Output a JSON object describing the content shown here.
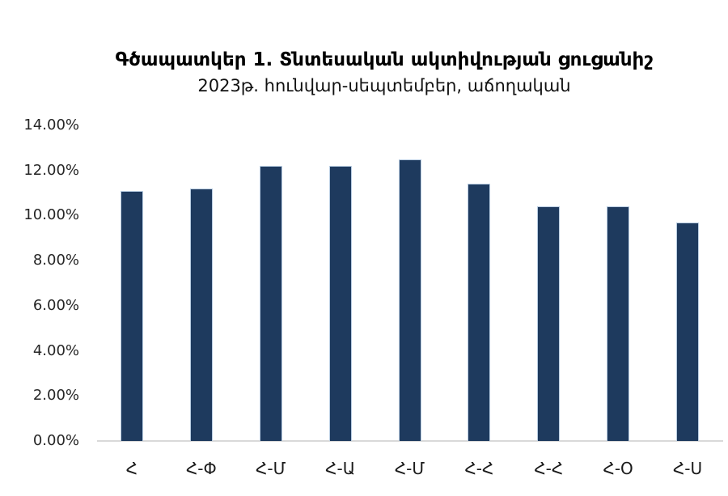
{
  "chart_data": {
    "type": "bar",
    "title": "Գծապատկեր 1. Տնտեսական ակտիվության ցուցանիշ",
    "subtitle": "2023թ. հունվար-սեպտեմբեր, աճողական",
    "categories": [
      "Հ",
      "Հ-Փ",
      "Հ-Մ",
      "Հ-Ա",
      "Հ-Մ",
      "Հ-Հ",
      "Հ-Հ",
      "Հ-Օ",
      "Հ-Ս"
    ],
    "values": [
      11.1,
      11.2,
      12.2,
      12.2,
      12.5,
      11.4,
      10.4,
      10.4,
      9.7
    ],
    "unit": "%",
    "ylim": [
      0,
      14
    ],
    "ytick_step": 2,
    "ytick_labels": [
      "0.00%",
      "2.00%",
      "4.00%",
      "6.00%",
      "8.00%",
      "10.00%",
      "12.00%",
      "14.00%"
    ],
    "xlabel": "",
    "ylabel": "",
    "grid": false,
    "legend": "none",
    "bar_color": "#1e3a5e",
    "bar_edge_color": "#b9cde2",
    "axis_line_color": "#d9d9d9"
  }
}
